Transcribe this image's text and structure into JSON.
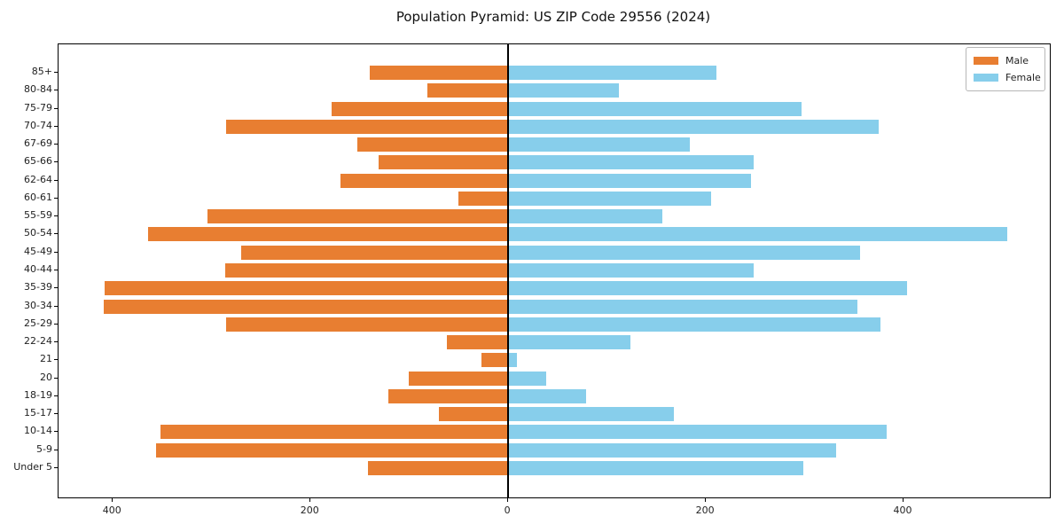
{
  "title": "Population Pyramid: US ZIP Code 29556 (2024)",
  "legend": {
    "male_label": "Male",
    "female_label": "Female",
    "position": "upper right"
  },
  "colors": {
    "male": "#e87e31",
    "female": "#87ceeb",
    "axis": "#000000"
  },
  "chart_data": {
    "type": "bar",
    "subtype": "population-pyramid-horizontal",
    "title": "Population Pyramid: US ZIP Code 29556 (2024)",
    "categories": [
      "85+",
      "80-84",
      "75-79",
      "70-74",
      "67-69",
      "65-66",
      "62-64",
      "60-61",
      "55-59",
      "50-54",
      "45-49",
      "40-44",
      "35-39",
      "30-34",
      "25-29",
      "22-24",
      "21",
      "20",
      "18-19",
      "15-17",
      "10-14",
      "5-9",
      "Under 5"
    ],
    "series": [
      {
        "name": "Male",
        "side": "left",
        "color": "#e87e31",
        "values": [
          140,
          82,
          179,
          285,
          153,
          131,
          170,
          50,
          304,
          364,
          270,
          286,
          408,
          409,
          285,
          62,
          27,
          101,
          121,
          70,
          352,
          356,
          142
        ]
      },
      {
        "name": "Female",
        "side": "right",
        "color": "#87ceeb",
        "values": [
          211,
          112,
          297,
          375,
          184,
          248,
          246,
          205,
          156,
          505,
          356,
          248,
          404,
          353,
          377,
          124,
          9,
          38,
          79,
          168,
          383,
          332,
          299
        ]
      }
    ],
    "xlabel": "",
    "ylabel": "",
    "xlim": [
      -455,
      548
    ],
    "xticks": [
      -400,
      -200,
      0,
      200,
      400
    ],
    "xtick_labels": [
      "400",
      "200",
      "0",
      "200",
      "400"
    ],
    "grid": false,
    "zero_line": true,
    "legend_position": "upper right"
  }
}
